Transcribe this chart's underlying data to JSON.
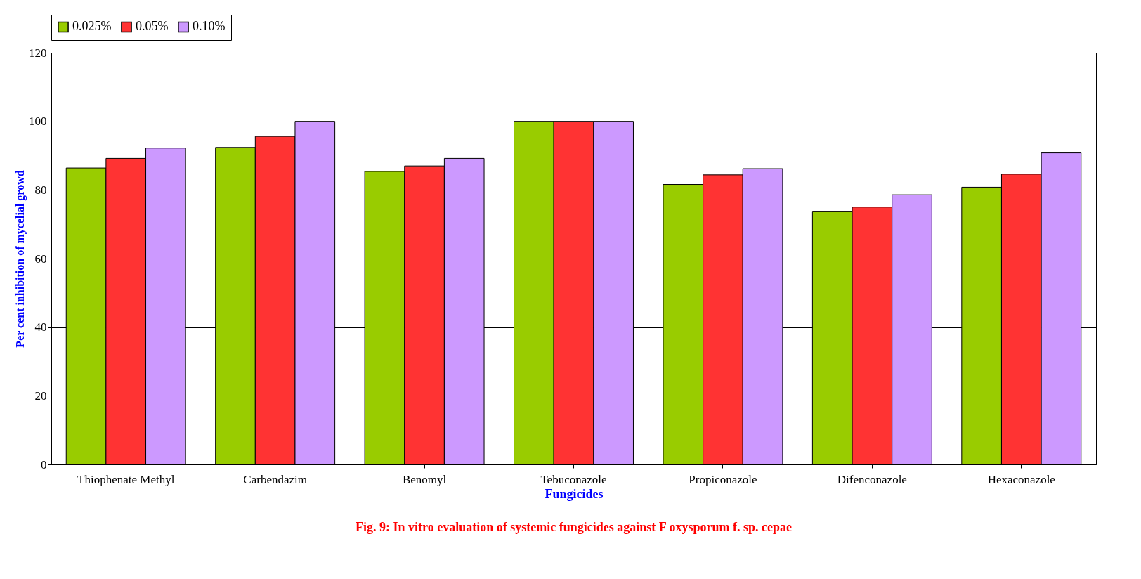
{
  "chart_data": {
    "type": "bar",
    "title": "Fig. 9: In vitro  evaluation of systemic fungicides against F oxysporum  f. sp. cepae",
    "xlabel": "Fungicides",
    "ylabel": "Per cent inhibition of mycelial growd",
    "categories": [
      "Thiophenate Methyl",
      "Carbendazim",
      "Benomyl",
      "Tebuconazole",
      "Propiconazole",
      "Difenconazole",
      "Hexaconazole"
    ],
    "series": [
      {
        "name": "0.025%",
        "color": "#99cc00",
        "values": [
          86.4,
          92.4,
          85.4,
          100,
          81.6,
          73.8,
          80.8
        ]
      },
      {
        "name": "0.05%",
        "color": "#ff3333",
        "values": [
          89.2,
          95.6,
          87,
          100,
          84.4,
          75,
          84.6
        ]
      },
      {
        "name": "0.10%",
        "color": "#cc99ff",
        "values": [
          92.2,
          100,
          89.2,
          100,
          86.2,
          78.6,
          90.8
        ]
      }
    ],
    "ylim": [
      0,
      120
    ],
    "yticks": [
      0,
      20,
      40,
      60,
      80,
      100,
      120
    ],
    "grid": "y",
    "legend": "top"
  }
}
